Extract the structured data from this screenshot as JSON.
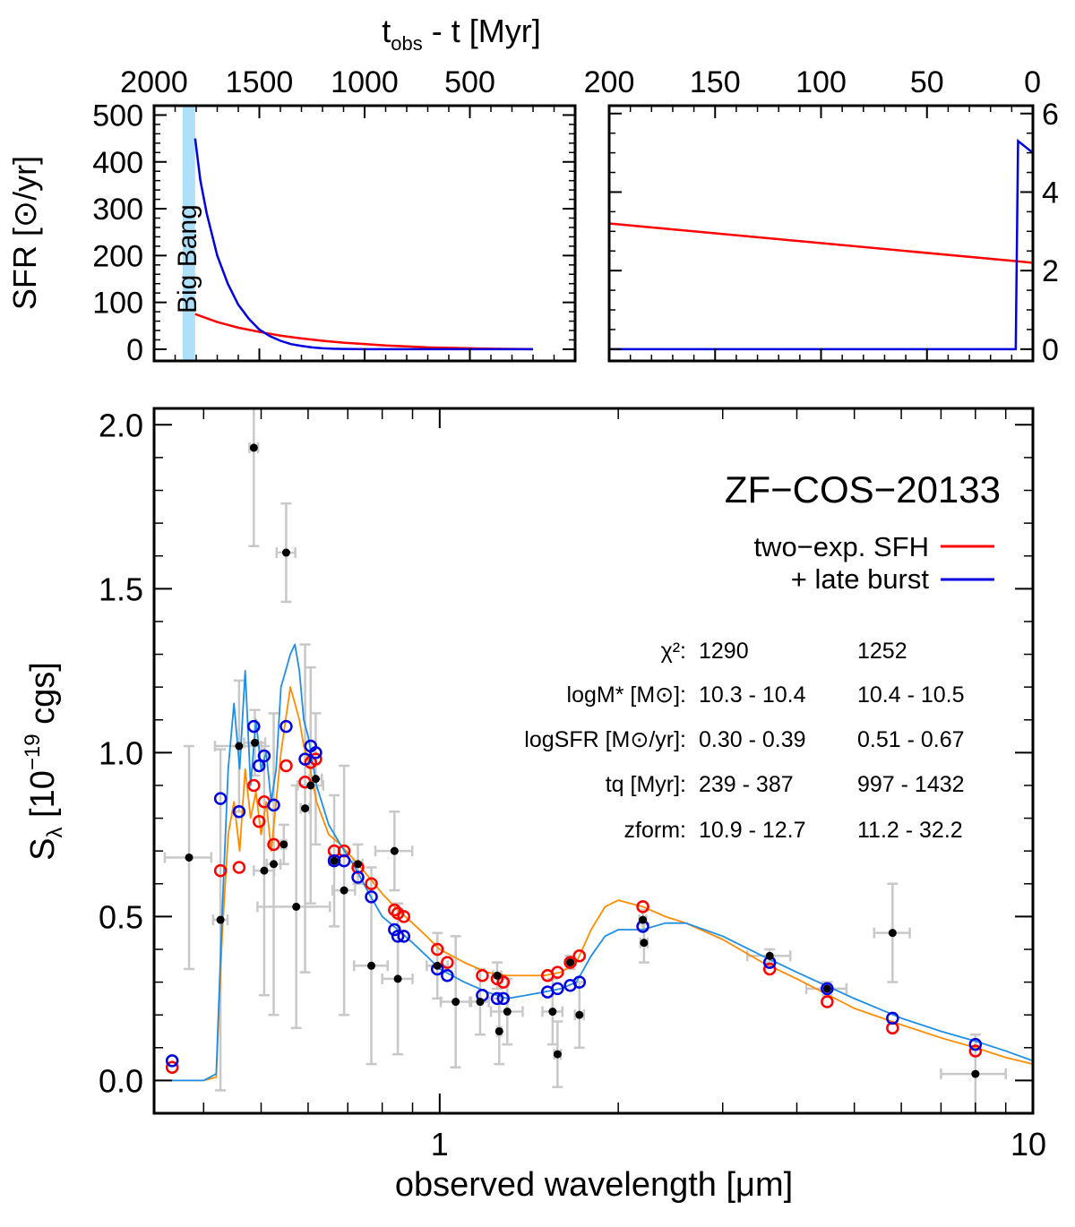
{
  "chart_data": [
    {
      "panel": "sfh-left",
      "type": "line",
      "top_axis_title_main": "t",
      "top_axis_title_sub": "obs",
      "top_axis_title_rest": " - t [Myr]",
      "ylabel": "SFR [⊙/yr]",
      "xlim": [
        2000,
        0
      ],
      "ylim": [
        -25,
        520
      ],
      "x_ticks": [
        2000,
        1500,
        1000,
        500
      ],
      "y_ticks": [
        0,
        100,
        200,
        300,
        400,
        500
      ],
      "annotation": "Big Bang",
      "big_bang_x": 1805,
      "colors": {
        "red_model": "#ff0000",
        "blue_model": "#0000e0",
        "big_bang": "#aee0fa"
      },
      "series": [
        {
          "key": "red",
          "x": [
            1805,
            1700,
            1600,
            1500,
            1400,
            1300,
            1200,
            1100,
            1000,
            900,
            800,
            700,
            600,
            500,
            400,
            300,
            200
          ],
          "y": [
            75,
            58,
            46,
            37,
            29,
            23,
            18,
            14,
            11,
            8,
            6,
            4,
            3,
            2,
            1,
            0.5,
            0
          ]
        },
        {
          "key": "blue",
          "x": [
            1805,
            1780,
            1750,
            1700,
            1650,
            1600,
            1550,
            1500,
            1450,
            1400,
            1350,
            1300,
            1250,
            1200,
            1150,
            1100,
            1000,
            900,
            800,
            700,
            200
          ],
          "y": [
            450,
            360,
            290,
            200,
            140,
            95,
            65,
            42,
            28,
            18,
            11,
            7,
            4,
            2,
            1,
            0.5,
            0,
            0,
            0,
            0,
            0
          ]
        }
      ]
    },
    {
      "panel": "sfh-right",
      "type": "line",
      "xlim": [
        200,
        0
      ],
      "ylim": [
        -0.3,
        6.2
      ],
      "x_ticks": [
        200,
        150,
        100,
        50,
        0
      ],
      "y_ticks": [
        0,
        2,
        4,
        6
      ],
      "series": [
        {
          "key": "red",
          "x": [
            200,
            0
          ],
          "y": [
            3.2,
            2.2
          ]
        },
        {
          "key": "blue",
          "x": [
            200,
            8.1,
            7,
            0
          ],
          "y": [
            0,
            0,
            5.3,
            5.0
          ]
        }
      ]
    },
    {
      "panel": "sed",
      "type": "scatter",
      "xlabel": "observed wavelength [μm]",
      "ylabel_main": "S",
      "ylabel_sub": "λ",
      "ylabel_rest": " [10",
      "ylabel_exp": "−19",
      "ylabel_end": " cgs]",
      "xscale": "log",
      "xlim": [
        0.33,
        10.0
      ],
      "ylim": [
        -0.1,
        2.05
      ],
      "x_tick_labels": [
        {
          "x": 1,
          "label": "1"
        },
        {
          "x": 10,
          "label": "10"
        }
      ],
      "y_ticks": [
        {
          "v": 0.0,
          "label": "0.0"
        },
        {
          "v": 0.5,
          "label": "0.5"
        },
        {
          "v": 1.0,
          "label": "1.0"
        },
        {
          "v": 1.5,
          "label": "1.5"
        },
        {
          "v": 2.0,
          "label": "2.0"
        }
      ],
      "object_name": "ZF−COS−20133",
      "legend": [
        {
          "label": "two−exp. SFH",
          "color": "#ff0000"
        },
        {
          "label": "+ late burst",
          "color": "#0000e0"
        }
      ],
      "stats": [
        {
          "label": "χ²:",
          "red": "1290",
          "blue": "1252"
        },
        {
          "label": "logM* [M⊙]:",
          "red": "10.3 - 10.4",
          "blue": "10.4 - 10.5"
        },
        {
          "label": "logSFR [M⊙/yr]:",
          "red": "0.30 - 0.39",
          "blue": "0.51 - 0.67"
        },
        {
          "label": "tq [Myr]:",
          "red": "239 - 387",
          "blue": "997 - 1432"
        },
        {
          "label": "zform:",
          "red": "10.9 - 12.7",
          "blue": "11.2 - 32.2"
        }
      ],
      "colors": {
        "model_orange": "#ff8c00",
        "model_blue": "#1f8fe6",
        "red_points": "#ff0000",
        "blue_points": "#0000e0",
        "data": "#000000",
        "errorbar": "#c8c8c8"
      },
      "observations": [
        [
          0.378,
          0.68,
          0.034,
          0.34
        ],
        [
          0.427,
          0.49,
          0.012,
          0.52
        ],
        [
          0.459,
          1.02,
          0.041,
          0.2
        ],
        [
          0.486,
          1.93,
          0.008,
          0.3
        ],
        [
          0.488,
          1.03,
          0.02,
          0.1
        ],
        [
          0.506,
          0.64,
          0.02,
          0.38
        ],
        [
          0.525,
          0.66,
          0.014,
          0.46
        ],
        [
          0.546,
          0.72,
          0.005,
          0.06
        ],
        [
          0.551,
          1.61,
          0.02,
          0.15
        ],
        [
          0.573,
          0.53,
          0.08,
          0.37
        ],
        [
          0.593,
          0.83,
          0.01,
          0.5
        ],
        [
          0.606,
          0.9,
          0.03,
          0.36
        ],
        [
          0.618,
          0.92,
          0.015,
          0.2
        ],
        [
          0.664,
          0.67,
          0.013,
          0.2
        ],
        [
          0.69,
          0.58,
          0.03,
          0.38
        ],
        [
          0.728,
          0.66,
          0.013,
          0.06
        ],
        [
          0.767,
          0.35,
          0.05,
          0.3
        ],
        [
          0.839,
          0.7,
          0.06,
          0.12
        ],
        [
          0.85,
          0.31,
          0.05,
          0.23
        ],
        [
          0.991,
          0.35,
          0.04,
          0.1
        ],
        [
          1.064,
          0.24,
          0.06,
          0.2
        ],
        [
          1.17,
          0.24,
          0.04,
          0.1
        ],
        [
          1.25,
          0.32,
          0.02,
          0.04
        ],
        [
          1.26,
          0.15,
          0.01,
          0.1
        ],
        [
          1.3,
          0.21,
          0.08,
          0.1
        ],
        [
          1.55,
          0.21,
          0.06,
          0.1
        ],
        [
          1.58,
          0.08,
          0.02,
          0.1
        ],
        [
          1.66,
          0.36,
          0.02,
          0.02
        ],
        [
          1.72,
          0.2,
          0.03,
          0.1
        ],
        [
          2.2,
          0.49,
          0.03,
          0.03
        ],
        [
          2.21,
          0.42,
          0.03,
          0.06
        ],
        [
          3.6,
          0.38,
          0.3,
          0.02
        ],
        [
          4.5,
          0.28,
          0.35,
          0.02
        ],
        [
          5.8,
          0.45,
          0.4,
          0.15
        ],
        [
          8.0,
          0.02,
          1.0,
          0.12
        ]
      ],
      "model_points_red": [
        [
          0.354,
          0.04
        ],
        [
          0.427,
          0.64
        ],
        [
          0.459,
          0.65
        ],
        [
          0.486,
          0.9
        ],
        [
          0.496,
          0.79
        ],
        [
          0.506,
          0.85
        ],
        [
          0.525,
          0.72
        ],
        [
          0.551,
          0.96
        ],
        [
          0.593,
          0.91
        ],
        [
          0.606,
          0.97
        ],
        [
          0.618,
          0.98
        ],
        [
          0.664,
          0.7
        ],
        [
          0.69,
          0.7
        ],
        [
          0.728,
          0.65
        ],
        [
          0.767,
          0.6
        ],
        [
          0.839,
          0.52
        ],
        [
          0.85,
          0.51
        ],
        [
          0.87,
          0.5
        ],
        [
          0.991,
          0.4
        ],
        [
          1.03,
          0.36
        ],
        [
          1.18,
          0.32
        ],
        [
          1.25,
          0.31
        ],
        [
          1.28,
          0.3
        ],
        [
          1.52,
          0.32
        ],
        [
          1.58,
          0.33
        ],
        [
          1.66,
          0.36
        ],
        [
          1.72,
          0.38
        ],
        [
          2.2,
          0.53
        ],
        [
          3.6,
          0.34
        ],
        [
          4.5,
          0.24
        ],
        [
          5.8,
          0.16
        ],
        [
          8.0,
          0.09
        ]
      ],
      "model_points_blue": [
        [
          0.354,
          0.06
        ],
        [
          0.427,
          0.86
        ],
        [
          0.459,
          0.82
        ],
        [
          0.486,
          1.08
        ],
        [
          0.496,
          0.96
        ],
        [
          0.506,
          0.99
        ],
        [
          0.525,
          0.84
        ],
        [
          0.551,
          1.08
        ],
        [
          0.593,
          0.98
        ],
        [
          0.606,
          1.02
        ],
        [
          0.618,
          1.0
        ],
        [
          0.664,
          0.67
        ],
        [
          0.69,
          0.67
        ],
        [
          0.728,
          0.62
        ],
        [
          0.767,
          0.56
        ],
        [
          0.839,
          0.46
        ],
        [
          0.85,
          0.44
        ],
        [
          0.87,
          0.44
        ],
        [
          0.991,
          0.34
        ],
        [
          1.03,
          0.32
        ],
        [
          1.18,
          0.26
        ],
        [
          1.25,
          0.25
        ],
        [
          1.28,
          0.25
        ],
        [
          1.52,
          0.27
        ],
        [
          1.58,
          0.28
        ],
        [
          1.66,
          0.29
        ],
        [
          1.72,
          0.3
        ],
        [
          2.2,
          0.47
        ],
        [
          3.6,
          0.36
        ],
        [
          4.5,
          0.28
        ],
        [
          5.8,
          0.19
        ],
        [
          8.0,
          0.11
        ]
      ],
      "model_spectrum_blue": [
        [
          0.33,
          0.0
        ],
        [
          0.4,
          0.0
        ],
        [
          0.42,
          0.02
        ],
        [
          0.43,
          0.52
        ],
        [
          0.44,
          0.95
        ],
        [
          0.45,
          1.15
        ],
        [
          0.46,
          0.95
        ],
        [
          0.47,
          1.25
        ],
        [
          0.48,
          0.9
        ],
        [
          0.49,
          1.1
        ],
        [
          0.5,
          0.95
        ],
        [
          0.51,
          1.0
        ],
        [
          0.52,
          0.85
        ],
        [
          0.53,
          0.95
        ],
        [
          0.54,
          1.2
        ],
        [
          0.55,
          1.25
        ],
        [
          0.56,
          1.3
        ],
        [
          0.57,
          1.33
        ],
        [
          0.58,
          1.25
        ],
        [
          0.59,
          1.1
        ],
        [
          0.6,
          1.05
        ],
        [
          0.62,
          0.9
        ],
        [
          0.65,
          0.78
        ],
        [
          0.68,
          0.72
        ],
        [
          0.72,
          0.65
        ],
        [
          0.76,
          0.57
        ],
        [
          0.8,
          0.5
        ],
        [
          0.85,
          0.46
        ],
        [
          0.9,
          0.42
        ],
        [
          0.95,
          0.38
        ],
        [
          1.0,
          0.34
        ],
        [
          1.1,
          0.3
        ],
        [
          1.2,
          0.27
        ],
        [
          1.3,
          0.25
        ],
        [
          1.4,
          0.26
        ],
        [
          1.5,
          0.27
        ],
        [
          1.6,
          0.28
        ],
        [
          1.7,
          0.3
        ],
        [
          1.8,
          0.38
        ],
        [
          1.9,
          0.44
        ],
        [
          2.0,
          0.46
        ],
        [
          2.2,
          0.46
        ],
        [
          2.4,
          0.48
        ],
        [
          2.6,
          0.48
        ],
        [
          3.0,
          0.44
        ],
        [
          3.5,
          0.38
        ],
        [
          4.0,
          0.33
        ],
        [
          5.0,
          0.25
        ],
        [
          6.0,
          0.19
        ],
        [
          7.0,
          0.15
        ],
        [
          8.0,
          0.12
        ],
        [
          9.0,
          0.09
        ],
        [
          10.0,
          0.06
        ]
      ],
      "model_spectrum_orange": [
        [
          0.33,
          0.0
        ],
        [
          0.4,
          0.0
        ],
        [
          0.42,
          0.01
        ],
        [
          0.43,
          0.45
        ],
        [
          0.44,
          0.75
        ],
        [
          0.45,
          0.85
        ],
        [
          0.46,
          0.7
        ],
        [
          0.47,
          0.95
        ],
        [
          0.48,
          0.8
        ],
        [
          0.49,
          0.88
        ],
        [
          0.5,
          0.75
        ],
        [
          0.51,
          0.85
        ],
        [
          0.52,
          0.7
        ],
        [
          0.53,
          0.85
        ],
        [
          0.54,
          1.0
        ],
        [
          0.55,
          1.1
        ],
        [
          0.56,
          1.2
        ],
        [
          0.57,
          1.15
        ],
        [
          0.58,
          1.1
        ],
        [
          0.59,
          1.02
        ],
        [
          0.6,
          0.98
        ],
        [
          0.62,
          0.85
        ],
        [
          0.65,
          0.75
        ],
        [
          0.68,
          0.72
        ],
        [
          0.72,
          0.67
        ],
        [
          0.76,
          0.62
        ],
        [
          0.8,
          0.57
        ],
        [
          0.85,
          0.52
        ],
        [
          0.9,
          0.48
        ],
        [
          0.95,
          0.44
        ],
        [
          1.0,
          0.4
        ],
        [
          1.1,
          0.36
        ],
        [
          1.2,
          0.33
        ],
        [
          1.3,
          0.32
        ],
        [
          1.4,
          0.32
        ],
        [
          1.5,
          0.32
        ],
        [
          1.6,
          0.33
        ],
        [
          1.7,
          0.36
        ],
        [
          1.8,
          0.46
        ],
        [
          1.9,
          0.53
        ],
        [
          2.0,
          0.55
        ],
        [
          2.2,
          0.53
        ],
        [
          2.4,
          0.5
        ],
        [
          2.6,
          0.48
        ],
        [
          3.0,
          0.43
        ],
        [
          3.5,
          0.36
        ],
        [
          4.0,
          0.31
        ],
        [
          5.0,
          0.22
        ],
        [
          6.0,
          0.17
        ],
        [
          7.0,
          0.13
        ],
        [
          8.0,
          0.1
        ],
        [
          9.0,
          0.07
        ],
        [
          10.0,
          0.05
        ]
      ]
    }
  ]
}
